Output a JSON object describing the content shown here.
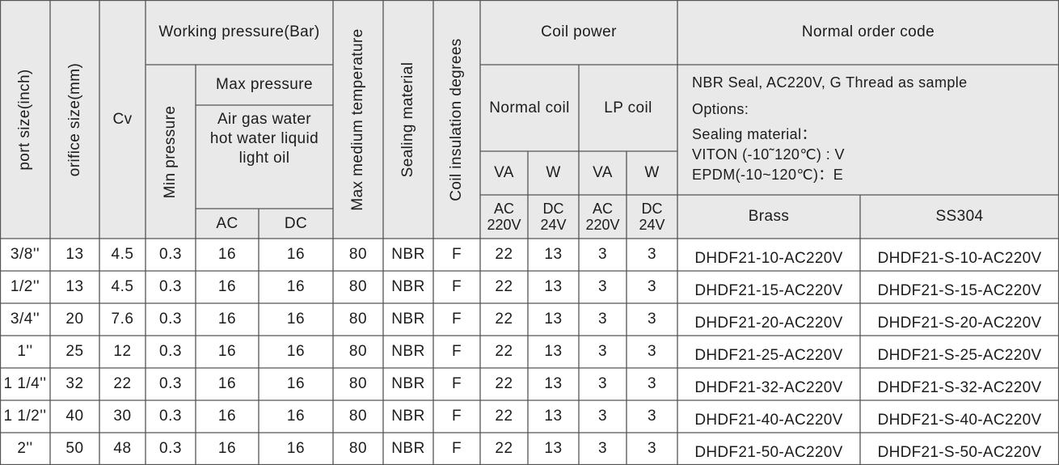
{
  "headers": {
    "port_size": "port size(inch)",
    "orifice_size": "orifice size(mm)",
    "cv": "Cv",
    "working_pressure": "Working pressure(Bar)",
    "min_pressure": "Min pressure",
    "max_pressure": "Max pressure",
    "media_line1": "Air gas water",
    "media_line2": "hot water liquid",
    "media_line3": "light oil",
    "ac": "AC",
    "dc": "DC",
    "max_temp": "Max medium temperature",
    "sealing": "Sealing  material",
    "insulation": "Coil insulation degrees",
    "coil_power": "Coil power",
    "normal_coil": "Normal coil",
    "lp_coil": "LP coil",
    "va_1": "VA",
    "w_1": "W",
    "va_2": "VA",
    "w_2": "W",
    "ac_220v_1_top": "AC",
    "ac_220v_1_bottom": "220V",
    "dc_24v_1_top": "DC",
    "dc_24v_1_bottom": "24V",
    "ac_220v_2_top": "AC",
    "ac_220v_2_bottom": "220V",
    "dc_24v_2_top": "DC",
    "dc_24v_2_bottom": "24V",
    "order_code": "Normal order code",
    "brass": "Brass",
    "ss304": "SS304"
  },
  "notes": {
    "line1": "NBR Seal, AC220V, G Thread as sample",
    "line2": "Options:",
    "line3": "Sealing material：",
    "line4": "VITON (-10˜120℃) : V",
    "line5": "EPDM(-10~120℃)：E"
  },
  "rows": [
    {
      "port": "3/8''",
      "orifice": "13",
      "cv": "4.5",
      "min": "0.3",
      "ac": "16",
      "dc": "16",
      "temp": "80",
      "seal": "NBR",
      "ins": "F",
      "va1": "22",
      "w1": "13",
      "va2": "3",
      "w2": "3",
      "brass": "DHDF21-10-AC220V",
      "ss": "DHDF21-S-10-AC220V"
    },
    {
      "port": "1/2''",
      "orifice": "13",
      "cv": "4.5",
      "min": "0.3",
      "ac": "16",
      "dc": "16",
      "temp": "80",
      "seal": "NBR",
      "ins": "F",
      "va1": "22",
      "w1": "13",
      "va2": "3",
      "w2": "3",
      "brass": "DHDF21-15-AC220V",
      "ss": "DHDF21-S-15-AC220V"
    },
    {
      "port": "3/4''",
      "orifice": "20",
      "cv": "7.6",
      "min": "0.3",
      "ac": "16",
      "dc": "16",
      "temp": "80",
      "seal": "NBR",
      "ins": "F",
      "va1": "22",
      "w1": "13",
      "va2": "3",
      "w2": "3",
      "brass": "DHDF21-20-AC220V",
      "ss": "DHDF21-S-20-AC220V"
    },
    {
      "port": "1''",
      "orifice": "25",
      "cv": "12",
      "min": "0.3",
      "ac": "16",
      "dc": "16",
      "temp": "80",
      "seal": "NBR",
      "ins": "F",
      "va1": "22",
      "w1": "13",
      "va2": "3",
      "w2": "3",
      "brass": "DHDF21-25-AC220V",
      "ss": "DHDF21-S-25-AC220V"
    },
    {
      "port": "1 1/4''",
      "orifice": "32",
      "cv": "22",
      "min": "0.3",
      "ac": "16",
      "dc": "16",
      "temp": "80",
      "seal": "NBR",
      "ins": "F",
      "va1": "22",
      "w1": "13",
      "va2": "3",
      "w2": "3",
      "brass": "DHDF21-32-AC220V",
      "ss": "DHDF21-S-32-AC220V"
    },
    {
      "port": "1 1/2''",
      "orifice": "40",
      "cv": "30",
      "min": "0.3",
      "ac": "16",
      "dc": "16",
      "temp": "80",
      "seal": "NBR",
      "ins": "F",
      "va1": "22",
      "w1": "13",
      "va2": "3",
      "w2": "3",
      "brass": "DHDF21-40-AC220V",
      "ss": "DHDF21-S-40-AC220V"
    },
    {
      "port": "2''",
      "orifice": "50",
      "cv": "48",
      "min": "0.3",
      "ac": "16",
      "dc": "16",
      "temp": "80",
      "seal": "NBR",
      "ins": "F",
      "va1": "22",
      "w1": "13",
      "va2": "3",
      "w2": "3",
      "brass": "DHDF21-50-AC220V",
      "ss": "DHDF21-S-50-AC220V"
    }
  ],
  "style": {
    "header_fill": "#e9e9e9",
    "line_color": "#555555",
    "text_color": "#1c1c1c"
  }
}
